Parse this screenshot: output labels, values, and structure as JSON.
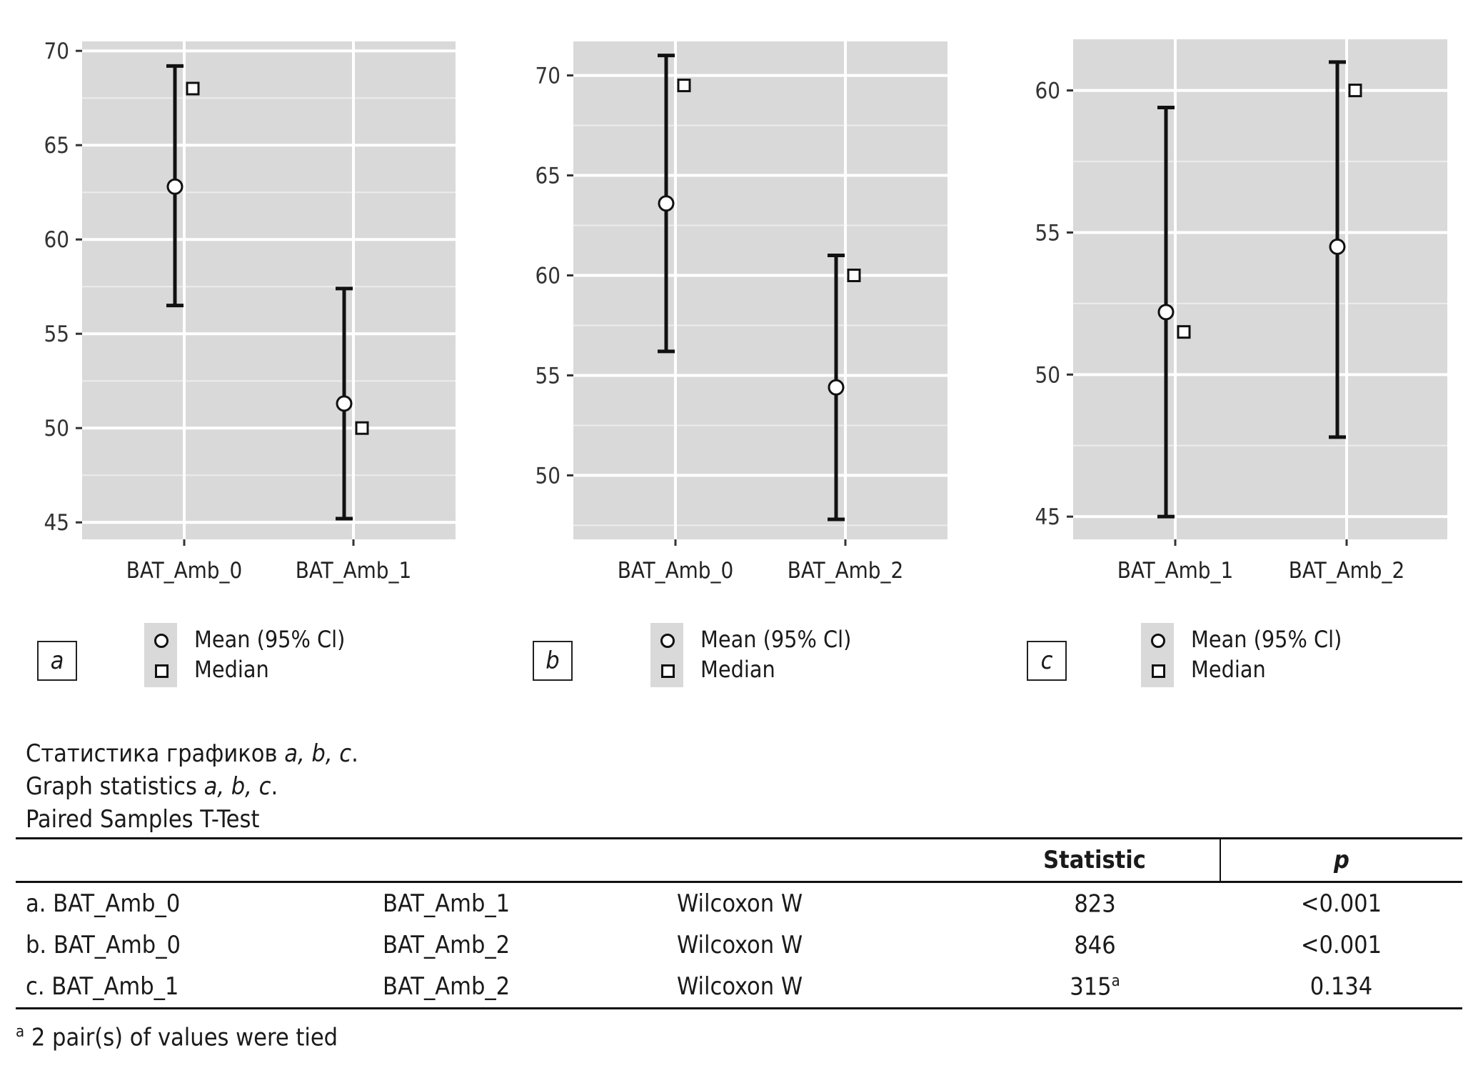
{
  "chart_data": [
    {
      "type": "errorbar",
      "panel": "a",
      "categories": [
        "BAT_Amb_0",
        "BAT_Amb_1"
      ],
      "mean": [
        62.8,
        51.3
      ],
      "ci_low": [
        56.5,
        45.2
      ],
      "ci_high": [
        69.2,
        57.4
      ],
      "median": [
        68.0,
        50.0
      ],
      "yticks": [
        45,
        50,
        55,
        60,
        65,
        70
      ],
      "ylim": [
        44.1,
        70.5
      ]
    },
    {
      "type": "errorbar",
      "panel": "b",
      "categories": [
        "BAT_Amb_0",
        "BAT_Amb_2"
      ],
      "mean": [
        63.6,
        54.4
      ],
      "ci_low": [
        56.2,
        47.8
      ],
      "ci_high": [
        71.0,
        61.0
      ],
      "median": [
        69.5,
        60.0
      ],
      "yticks": [
        50,
        55,
        60,
        65,
        70
      ],
      "ylim": [
        46.8,
        71.7
      ]
    },
    {
      "type": "errorbar",
      "panel": "c",
      "categories": [
        "BAT_Amb_1",
        "BAT_Amb_2"
      ],
      "mean": [
        52.2,
        54.5
      ],
      "ci_low": [
        45.0,
        47.8
      ],
      "ci_high": [
        59.4,
        61.0
      ],
      "median": [
        51.5,
        60.0
      ],
      "yticks": [
        45,
        50,
        55,
        60
      ],
      "ylim": [
        44.2,
        61.8
      ]
    }
  ],
  "panels": [
    {
      "label": "a",
      "legend_mean": "Mean (95% Cl)",
      "legend_median": "Median"
    },
    {
      "label": "b",
      "legend_mean": "Mean (95% Cl)",
      "legend_median": "Median"
    },
    {
      "label": "c",
      "legend_mean": "Mean (95% Cl)",
      "legend_median": "Median"
    }
  ],
  "captions": {
    "ru_text": "Статистика графиков ",
    "en_text": "Graph statistics ",
    "letters": "a, b, c",
    "period": ".",
    "test_name": "Paired Samples T-Test"
  },
  "table": {
    "headers": {
      "statistic": "Statistic",
      "p": "p"
    },
    "rows": [
      {
        "var1": "a. BAT_Amb_0",
        "var2": "BAT_Amb_1",
        "test": "Wilcoxon W",
        "statistic": "823",
        "sup": "",
        "p": "<0.001"
      },
      {
        "var1": "b.  BAT_Amb_0",
        "var2": "BAT_Amb_2",
        "test": "Wilcoxon W",
        "statistic": "846",
        "sup": "",
        "p": "<0.001"
      },
      {
        "var1": "c. BAT_Amb_1",
        "var2": "BAT_Amb_2",
        "test": "Wilcoxon W",
        "statistic": "315",
        "sup": "a",
        "p": "0.134"
      }
    ]
  },
  "footnote": {
    "mark": "a",
    "text": " 2 pair(s) of values were tied"
  }
}
